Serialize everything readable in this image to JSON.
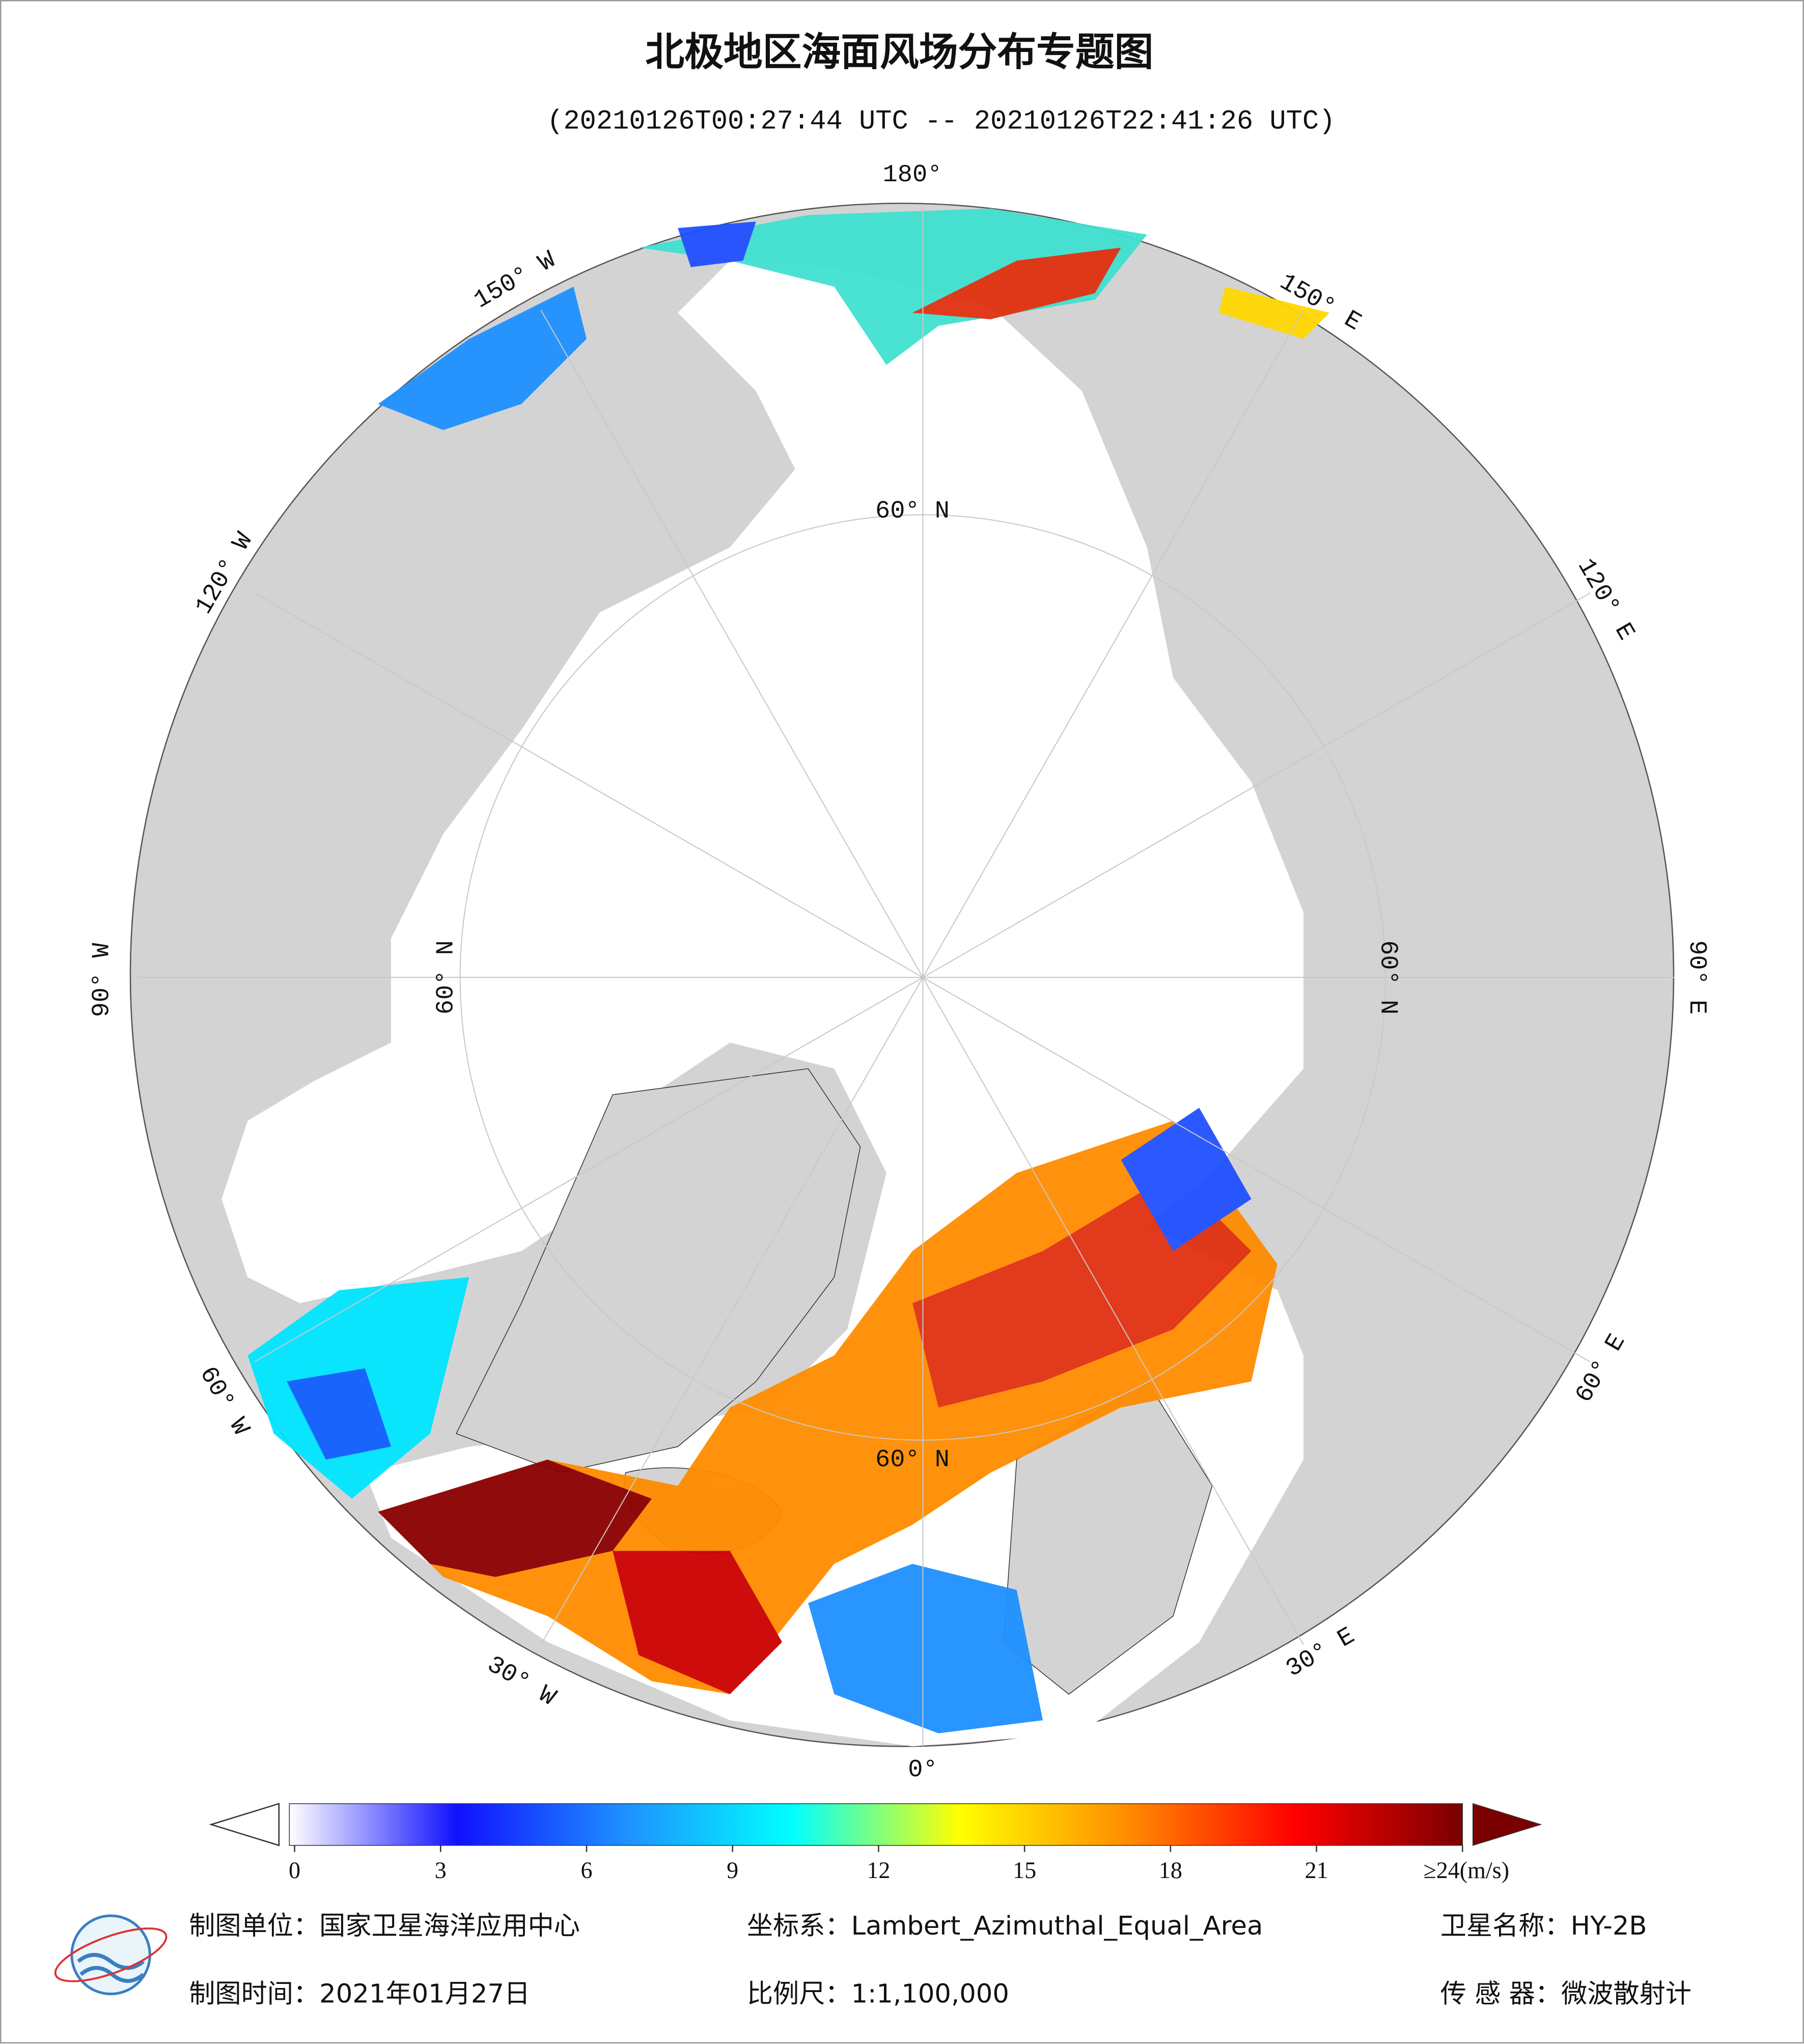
{
  "header": {
    "title": "北极地区海面风场分布专题图",
    "subtitle": "(20210126T00:27:44 UTC -- 20210126T22:41:26 UTC)"
  },
  "map": {
    "graticule_labels": [
      "180°",
      "150° W",
      "120° W",
      "90° W",
      "60° W",
      "30° W",
      "0°",
      "30° E",
      "60° E",
      "90° E",
      "120° E",
      "150° E",
      "60° N",
      "60° N",
      "60° N",
      "60° N"
    ]
  },
  "colorbar": {
    "lim": [
      0,
      24
    ],
    "ticks": [
      0,
      3,
      6,
      9,
      12,
      15,
      18,
      21,
      {
        "value": 24,
        "label": "≥24(m/s)"
      }
    ],
    "colors": [
      "#ffffff",
      "#1010ff",
      "#1e90ff",
      "#00ffff",
      "#ffff00",
      "#ff8c00",
      "#ff0000",
      "#7a0000"
    ]
  },
  "footer": {
    "unit": "制图单位：国家卫星海洋应用中心",
    "projection": "坐标系：Lambert_Azimuthal_Equal_Area",
    "satellite": "卫星名称：HY-2B",
    "date": "制图时间：2021年01月27日",
    "scale": "比例尺：1:1,100,000",
    "sensor": "传 感 器：微波散射计"
  }
}
